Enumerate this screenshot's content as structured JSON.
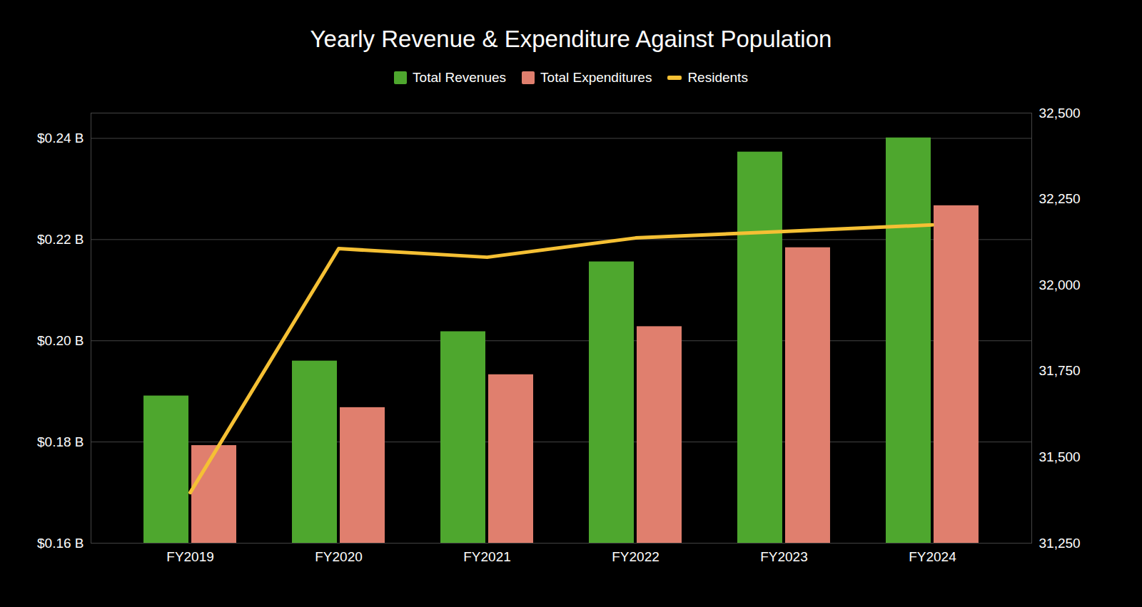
{
  "chart_data": {
    "type": "bar",
    "title": "Yearly Revenue & Expenditure Against Population",
    "categories": [
      "FY2019",
      "FY2020",
      "FY2021",
      "FY2022",
      "FY2023",
      "FY2024"
    ],
    "series": [
      {
        "name": "Total Revenues",
        "color": "#4ea72e",
        "values": [
          0.1891,
          0.196,
          0.2018,
          0.2156,
          0.2373,
          0.2401
        ]
      },
      {
        "name": "Total Expenditures",
        "color": "#e07f6e",
        "values": [
          0.1793,
          0.1868,
          0.1933,
          0.2028,
          0.2184,
          0.2267
        ]
      },
      {
        "name": "Residents",
        "type": "line",
        "axis": "y2",
        "color": "#f5c034",
        "values": [
          31397,
          32106,
          32081,
          32137,
          32156,
          32175
        ]
      }
    ],
    "ylim": [
      0.16,
      0.245
    ],
    "yticks": [
      {
        "value": 0.16,
        "label": "$0.16 B"
      },
      {
        "value": 0.18,
        "label": "$0.18 B"
      },
      {
        "value": 0.2,
        "label": "$0.20 B"
      },
      {
        "value": 0.22,
        "label": "$0.22 B"
      },
      {
        "value": 0.24,
        "label": "$0.24 B"
      }
    ],
    "y2lim": [
      31250,
      32500
    ],
    "y2ticks": [
      {
        "value": 31250,
        "label": "31,250"
      },
      {
        "value": 31500,
        "label": "31,500"
      },
      {
        "value": 31750,
        "label": "31,750"
      },
      {
        "value": 32000,
        "label": "32,000"
      },
      {
        "value": 32250,
        "label": "32,250"
      },
      {
        "value": 32500,
        "label": "32,500"
      }
    ],
    "grid": true,
    "legend": "top"
  }
}
